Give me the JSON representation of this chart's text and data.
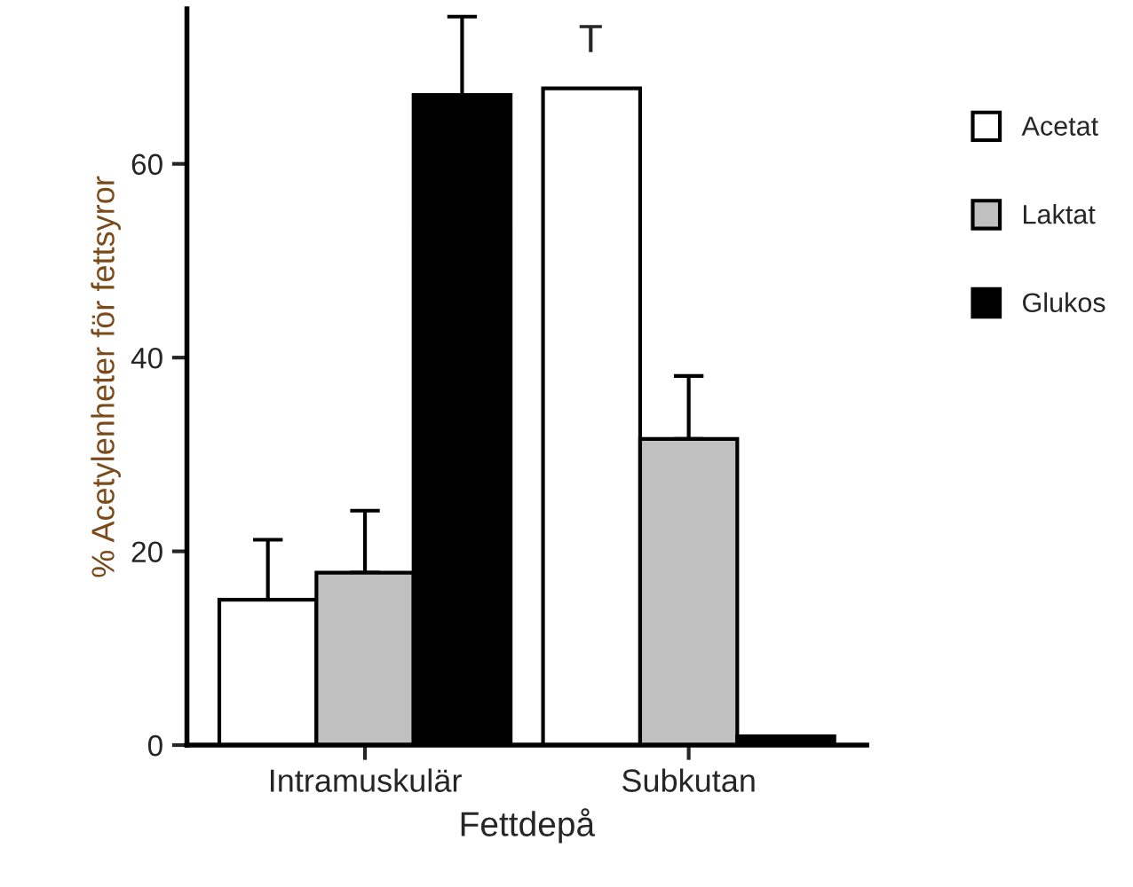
{
  "chart_data": {
    "type": "bar",
    "xlabel": "Fettdepå",
    "ylabel": "% Acetylenheter för fettsyror",
    "categories": [
      "Intramuskulär",
      "Subkutan"
    ],
    "series": [
      {
        "name": "Acetat",
        "color": "#ffffff",
        "values": [
          15,
          67.8
        ],
        "errors": [
          [
            15,
            21.2
          ],
          null
        ]
      },
      {
        "name": "Laktat",
        "color": "#c0c0c0",
        "values": [
          17.8,
          31.6
        ],
        "errors": [
          [
            17.8,
            24.2
          ],
          [
            31.6,
            38.1
          ]
        ]
      },
      {
        "name": "Glukos",
        "color": "#000000",
        "values": [
          67.1,
          0.9
        ],
        "errors": [
          [
            67.1,
            75.2
          ],
          null
        ]
      }
    ],
    "annotations": [
      "T"
    ],
    "ylim": [
      0,
      76
    ],
    "yticks": [
      0,
      20,
      40,
      60
    ],
    "grid": false,
    "legend": "right"
  }
}
